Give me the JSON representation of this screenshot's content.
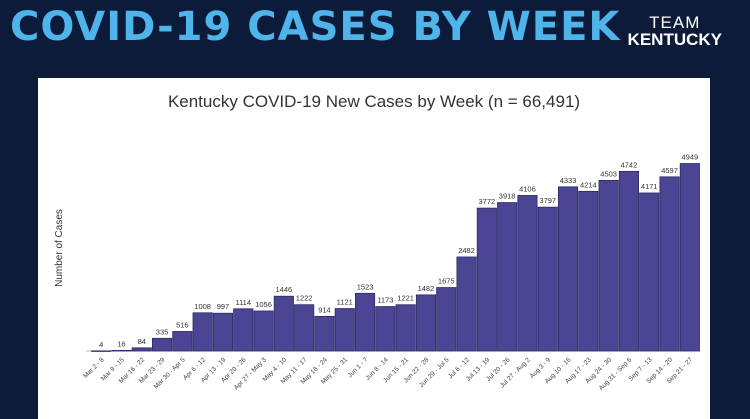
{
  "slide_title": "COVID-19 CASES BY WEEK",
  "logo": {
    "line1": "TEAM",
    "line2": "KENTUCKY"
  },
  "colors": {
    "background": "#0d1b3a",
    "title": "#4fb4ea",
    "bar": "#4b4593",
    "bar_edge": "#2e2a66"
  },
  "chart_data": {
    "type": "bar",
    "title": "Kentucky COVID-19 New Cases by Week (n = 66,491)",
    "xlabel": "",
    "ylabel": "Number of Cases",
    "ylim": [
      0,
      5200
    ],
    "grid": false,
    "categories": [
      "Mar 2 - 8",
      "Mar 9 - 15",
      "Mar 16 - 22",
      "Mar 23 - 29",
      "Mar 30 - Apr 5",
      "Apr 6 - 12",
      "Apr 13 - 19",
      "Apr 20 - 26",
      "Apr 27 - May 3",
      "May 4 - 10",
      "May 11 - 17",
      "May 18 - 24",
      "May 25 - 31",
      "Jun 1 - 7",
      "Jun 8 - 14",
      "Jun 15 - 21",
      "Jun 22 - 28",
      "Jun 29 - Jul 5",
      "Jul 6 - 12",
      "Jul 13 - 19",
      "Jul 20 - 26",
      "Jul 27 - Aug 2",
      "Aug 3 - 9",
      "Aug 10 - 16",
      "Aug 17 - 23",
      "Aug 24 - 30",
      "Aug 31 - Sep 6",
      "Sep 7 - 13",
      "Sep 14 - 20",
      "Sep 21 - 27"
    ],
    "values": [
      4,
      16,
      84,
      335,
      516,
      1008,
      997,
      1114,
      1056,
      1446,
      1222,
      914,
      1121,
      1523,
      1173,
      1221,
      1482,
      1675,
      2482,
      3772,
      3918,
      4106,
      3797,
      4333,
      4214,
      4503,
      4742,
      4171,
      4597,
      4949
    ]
  }
}
